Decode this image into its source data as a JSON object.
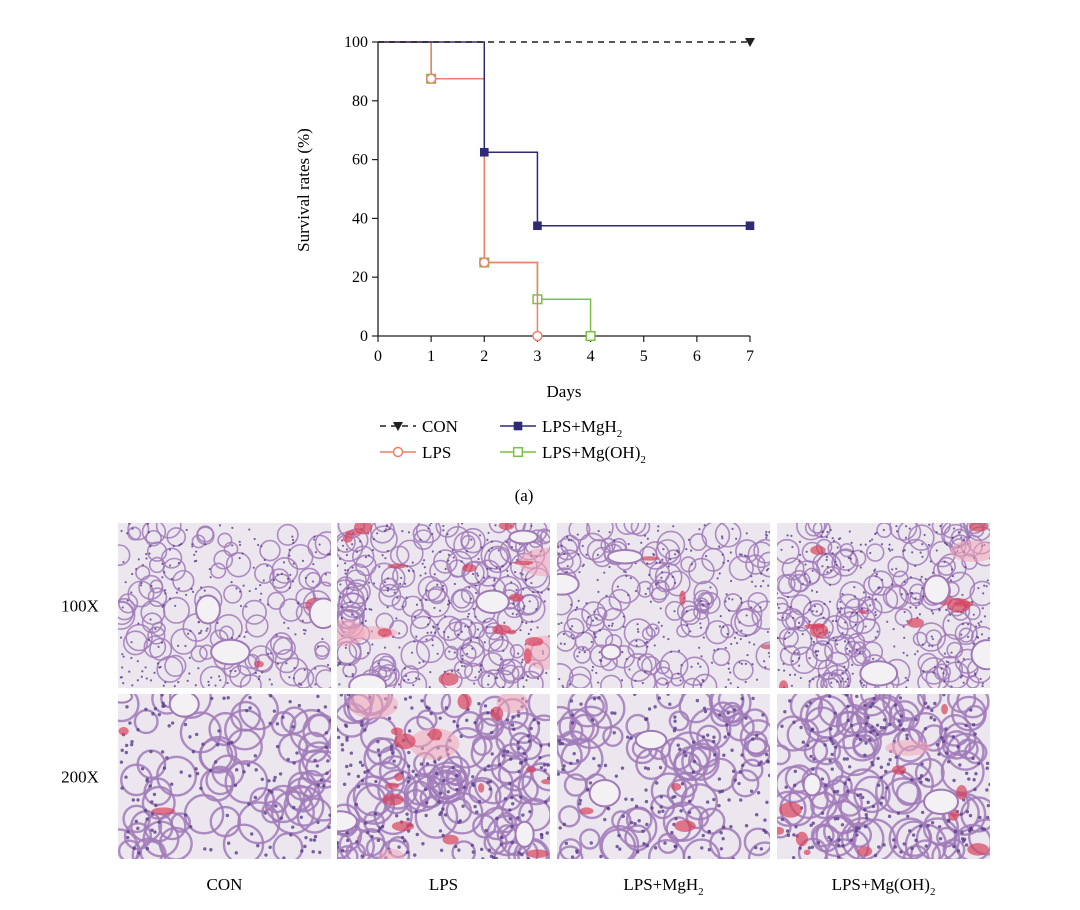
{
  "chart_data": {
    "type": "line",
    "subtype": "step (Kaplan-Meier survival)",
    "xlabel": "Days",
    "ylabel": "Survival rates (%)",
    "xlim": [
      0,
      7
    ],
    "ylim": [
      0,
      100
    ],
    "x_ticks": [
      0,
      1,
      2,
      3,
      4,
      5,
      6,
      7
    ],
    "y_ticks": [
      0,
      20,
      40,
      60,
      80,
      100
    ],
    "grid": false,
    "legend_position": "bottom",
    "series": [
      {
        "name": "CON",
        "color": "#231f20",
        "line": "dashed",
        "marker": "triangle-down-filled",
        "x": [
          0,
          7
        ],
        "y": [
          100,
          100
        ]
      },
      {
        "name": "LPS",
        "color": "#f07f6a",
        "line": "solid",
        "marker": "circle-open",
        "x": [
          0,
          1,
          2,
          3
        ],
        "y": [
          100,
          87.5,
          25,
          0
        ]
      },
      {
        "name": "LPS+MgH",
        "name_subscript": "2",
        "color": "#2e2a75",
        "line": "solid",
        "marker": "square-filled",
        "x": [
          0,
          2,
          3,
          7
        ],
        "y": [
          100,
          62.5,
          37.5,
          37.5
        ]
      },
      {
        "name": "LPS+Mg(OH)",
        "name_subscript": "2",
        "color": "#7ac142",
        "line": "solid",
        "marker": "square-open",
        "x": [
          0,
          1,
          2,
          3,
          4
        ],
        "y": [
          100,
          87.5,
          25,
          12.5,
          0
        ]
      }
    ]
  },
  "panel_label": "(a)",
  "histology": {
    "rows": [
      "100X",
      "200X"
    ],
    "columns": [
      {
        "label": "CON",
        "sub": ""
      },
      {
        "label": "LPS",
        "sub": ""
      },
      {
        "label": "LPS+MgH",
        "sub": "2"
      },
      {
        "label": "LPS+Mg(OH)",
        "sub": "2"
      }
    ],
    "stain_colors": {
      "background": "#ece6ee",
      "tissue": "#a07ab8",
      "nuclei": "#5b3f8c",
      "blood": "#d9435c",
      "edema": "#f2a8b8"
    }
  }
}
